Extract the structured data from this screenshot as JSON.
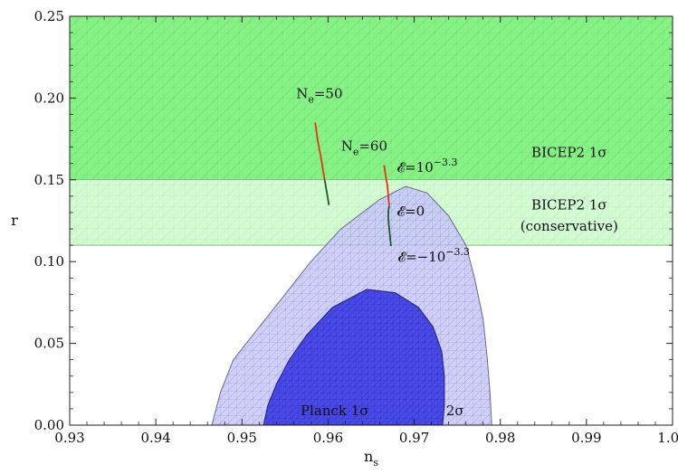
{
  "chart_data": {
    "type": "area",
    "xlabel": "n",
    "xlabel_sub": "s",
    "ylabel": "r",
    "xlim": [
      0.93,
      1.0
    ],
    "ylim": [
      0.0,
      0.25
    ],
    "x_ticks": [
      0.93,
      0.94,
      0.95,
      0.96,
      0.97,
      0.98,
      0.99,
      1.0
    ],
    "x_tick_labels": [
      "0.93",
      "0.94",
      "0.95",
      "0.96",
      "0.97",
      "0.98",
      "0.99",
      "1.00"
    ],
    "y_ticks": [
      0.0,
      0.05,
      0.1,
      0.15,
      0.2,
      0.25
    ],
    "y_tick_labels": [
      "0.00",
      "0.05",
      "0.10",
      "0.15",
      "0.20",
      "0.25"
    ],
    "grid": false,
    "regions": [
      {
        "name": "BICEP2 1σ",
        "label_lines": [
          "BICEP2 1σ"
        ],
        "r_range": [
          0.15,
          0.25
        ],
        "color": "#86f286"
      },
      {
        "name": "BICEP2 1σ (conservative)",
        "label_lines": [
          "BICEP2 1σ",
          "(conservative)"
        ],
        "r_range": [
          0.11,
          0.15
        ],
        "color": "#d3fad3"
      }
    ],
    "contours": [
      {
        "name": "2σ",
        "color": "#c8c8f6",
        "points": [
          [
            0.9465,
            0.0
          ],
          [
            0.9475,
            0.02
          ],
          [
            0.949,
            0.04
          ],
          [
            0.952,
            0.06
          ],
          [
            0.955,
            0.08
          ],
          [
            0.958,
            0.1
          ],
          [
            0.9615,
            0.12
          ],
          [
            0.966,
            0.138
          ],
          [
            0.969,
            0.146
          ],
          [
            0.9715,
            0.142
          ],
          [
            0.974,
            0.128
          ],
          [
            0.976,
            0.11
          ],
          [
            0.977,
            0.09
          ],
          [
            0.978,
            0.065
          ],
          [
            0.9785,
            0.04
          ],
          [
            0.9788,
            0.02
          ],
          [
            0.979,
            0.0
          ]
        ]
      },
      {
        "name": "Planck 1σ",
        "color": "#3e3ee4",
        "points": [
          [
            0.9525,
            0.0
          ],
          [
            0.953,
            0.012
          ],
          [
            0.954,
            0.025
          ],
          [
            0.9555,
            0.04
          ],
          [
            0.9575,
            0.055
          ],
          [
            0.9605,
            0.072
          ],
          [
            0.9645,
            0.083
          ],
          [
            0.9678,
            0.081
          ],
          [
            0.9705,
            0.072
          ],
          [
            0.9722,
            0.06
          ],
          [
            0.9732,
            0.045
          ],
          [
            0.9735,
            0.03
          ],
          [
            0.9735,
            0.012
          ],
          [
            0.9733,
            0.0
          ]
        ]
      }
    ],
    "curves": [
      {
        "name": "N_e=50",
        "points": [
          [
            0.9601,
            0.1345
          ],
          [
            0.96,
            0.138
          ],
          [
            0.9599,
            0.141
          ],
          [
            0.9598,
            0.144
          ],
          [
            0.9597,
            0.147
          ],
          [
            0.9596,
            0.15
          ],
          [
            0.9595,
            0.153
          ],
          [
            0.9592,
            0.163
          ],
          [
            0.9588,
            0.174
          ],
          [
            0.9585,
            0.185
          ]
        ],
        "segments": [
          {
            "from": 0,
            "to": 5,
            "color": "#1f5a2c"
          },
          {
            "from": 5,
            "to": 9,
            "color": "#e8311a"
          }
        ]
      },
      {
        "name": "N_e=60",
        "points": [
          [
            0.9673,
            0.1095
          ],
          [
            0.9672,
            0.115
          ],
          [
            0.9671,
            0.12
          ],
          [
            0.967,
            0.126
          ],
          [
            0.967,
            0.131
          ],
          [
            0.9671,
            0.134
          ],
          [
            0.967,
            0.14
          ],
          [
            0.9669,
            0.146
          ],
          [
            0.9667,
            0.152
          ],
          [
            0.9665,
            0.159
          ]
        ],
        "segments": [
          {
            "from": 0,
            "to": 5,
            "color": "#1f5a2c"
          },
          {
            "from": 5,
            "to": 9,
            "color": "#e8311a"
          }
        ]
      }
    ],
    "annotations": [
      {
        "id": "ne50",
        "base": "N",
        "sub": "e",
        "rest": "=50",
        "x": 0.9563,
        "y": 0.2
      },
      {
        "id": "ne60",
        "base": "N",
        "sub": "e",
        "rest": "=60",
        "x": 0.9615,
        "y": 0.168
      },
      {
        "id": "eps-plus",
        "base": "𝓔=10",
        "sup": "−3.3",
        "x": 0.968,
        "y": 0.155
      },
      {
        "id": "eps-zero",
        "base": "𝓔=0",
        "x": 0.968,
        "y": 0.128
      },
      {
        "id": "eps-minus",
        "base": "𝓔=−10",
        "sup": "−3.3",
        "x": 0.9681,
        "y": 0.1
      },
      {
        "id": "planck",
        "base": "Planck 1σ",
        "x": 0.9568,
        "y": 0.006
      },
      {
        "id": "two-sigma",
        "base": "2σ",
        "x": 0.9737,
        "y": 0.006
      }
    ]
  }
}
